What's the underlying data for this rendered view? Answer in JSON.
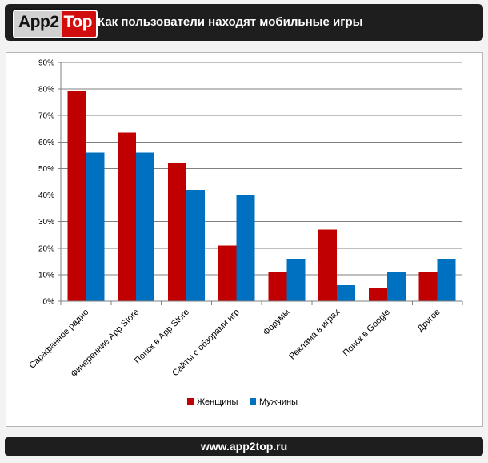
{
  "header": {
    "logo_part1": "App2",
    "logo_part2": "Top",
    "title": "Как пользователи находят мобильные игры"
  },
  "footer": {
    "url": "www.app2top.ru"
  },
  "colors": {
    "women": "#c00000",
    "men": "#0070c0",
    "grid": "#808080"
  },
  "chart_data": {
    "type": "bar",
    "title": "",
    "xlabel": "",
    "ylabel": "",
    "ylim": [
      0,
      90
    ],
    "y_ticks": [
      "0%",
      "10%",
      "20%",
      "30%",
      "40%",
      "50%",
      "60%",
      "70%",
      "80%",
      "90%"
    ],
    "grid": true,
    "legend_position": "bottom",
    "categories": [
      "Сарафанное радио",
      "Фичеренние App Store",
      "Поиск в App Store",
      "Сайты с обзорами игр",
      "Форумы",
      "Реклама в играх",
      "Поиск в Google",
      "Другое"
    ],
    "series": [
      {
        "name": "Женщины",
        "color": "#c00000",
        "values": [
          79.5,
          63.5,
          52,
          21,
          11,
          27,
          5,
          11
        ]
      },
      {
        "name": "Мужчины",
        "color": "#0070c0",
        "values": [
          56,
          56,
          42,
          40,
          16,
          6,
          11,
          16
        ]
      }
    ]
  }
}
